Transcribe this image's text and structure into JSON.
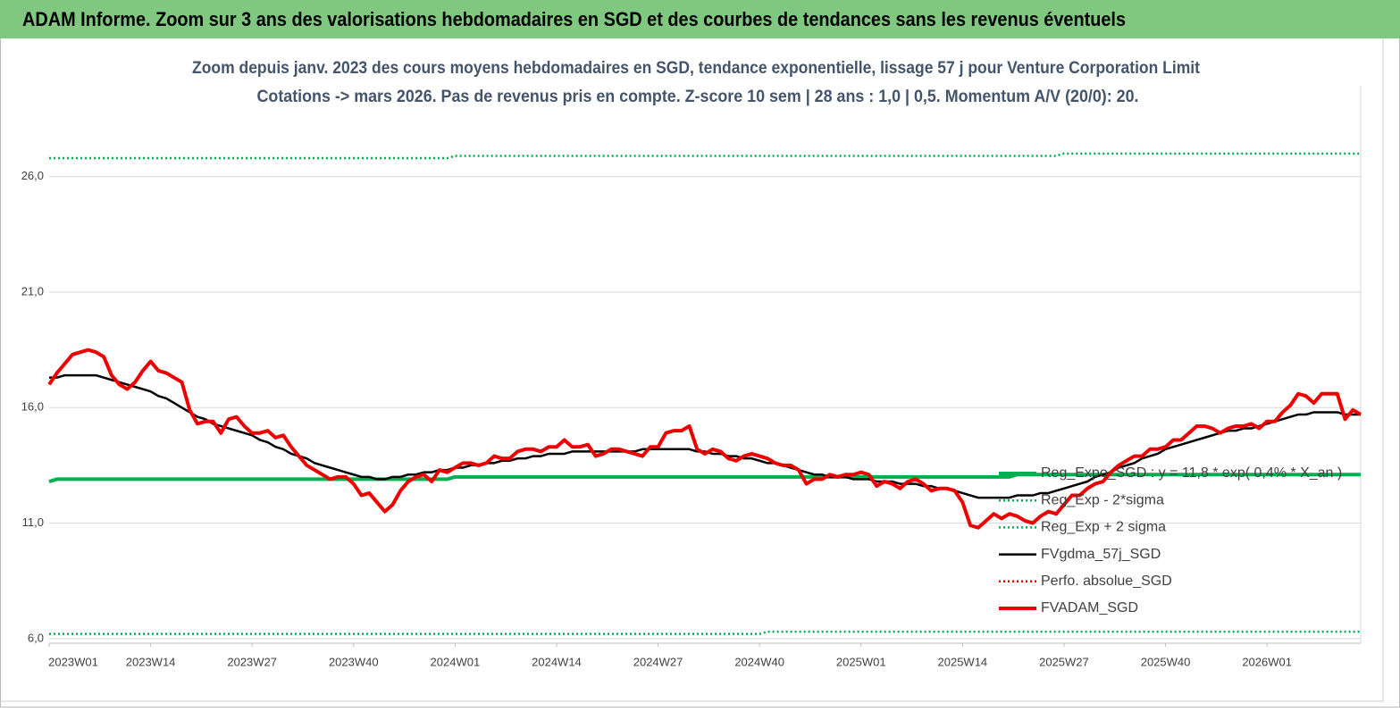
{
  "chart_data": {
    "type": "line",
    "title": "ADAM Informe. Zoom sur 3 ans des valorisations hebdomadaires en SGD et des courbes de tendances sans les revenus éventuels",
    "subtitle": [
      "Zoom depuis janv. 2023 des cours moyens hebdomadaires en SGD, tendance exponentielle, lissage 57 j pour Venture Corporation Limit",
      "Cotations -> mars 2026. Pas de revenus pris en compte. Z-score 10 sem  | 28 ans : 1,0 | 0,5. Momentum A/V (20/0): 20."
    ],
    "categories": [
      "2023W01",
      null,
      null,
      null,
      null,
      null,
      null,
      null,
      null,
      null,
      null,
      null,
      null,
      "2023W14",
      null,
      null,
      null,
      null,
      null,
      null,
      null,
      null,
      null,
      null,
      null,
      null,
      "2023W27",
      null,
      null,
      null,
      null,
      null,
      null,
      null,
      null,
      null,
      null,
      null,
      null,
      "2023W40",
      null,
      null,
      null,
      null,
      null,
      null,
      null,
      null,
      null,
      null,
      null,
      null,
      "2024W01",
      null,
      null,
      null,
      null,
      null,
      null,
      null,
      null,
      null,
      null,
      null,
      null,
      "2024W14",
      null,
      null,
      null,
      null,
      null,
      null,
      null,
      null,
      null,
      null,
      null,
      null,
      "2024W27",
      null,
      null,
      null,
      null,
      null,
      null,
      null,
      null,
      null,
      null,
      null,
      null,
      "2024W40",
      null,
      null,
      null,
      null,
      null,
      null,
      null,
      null,
      null,
      null,
      null,
      null,
      "2025W01",
      null,
      null,
      null,
      null,
      null,
      null,
      null,
      null,
      null,
      null,
      null,
      null,
      "2025W14",
      null,
      null,
      null,
      null,
      null,
      null,
      null,
      null,
      null,
      null,
      null,
      null,
      "2025W27",
      null,
      null,
      null,
      null,
      null,
      null,
      null,
      null,
      null,
      null,
      null,
      null,
      "2025W40",
      null,
      null,
      null,
      null,
      null,
      null,
      null,
      null,
      null,
      null,
      null,
      null,
      "2026W01",
      null,
      null,
      null,
      null,
      null,
      null,
      null,
      null,
      null,
      null,
      null,
      null
    ],
    "series": [
      {
        "name": "Reg_Expo_SGD : y = 11,8 * exp( 0,4% * X_an )",
        "color": "#00b050",
        "line_style": "thick",
        "values": [
          12.8,
          12.9,
          12.9,
          12.9,
          12.9,
          12.9,
          12.9,
          12.9,
          12.9,
          12.9,
          12.9,
          12.9,
          12.9,
          12.9,
          12.9,
          12.9,
          12.9,
          12.9,
          12.9,
          12.9,
          12.9,
          12.9,
          12.9,
          12.9,
          12.9,
          12.9,
          12.9,
          12.9,
          12.9,
          12.9,
          12.9,
          12.9,
          12.9,
          12.9,
          12.9,
          12.9,
          12.9,
          12.9,
          12.9,
          12.9,
          12.9,
          12.9,
          12.9,
          12.9,
          12.9,
          12.9,
          12.9,
          12.9,
          12.9,
          12.9,
          12.9,
          12.9,
          13.0,
          13.0,
          13.0,
          13.0,
          13.0,
          13.0,
          13.0,
          13.0,
          13.0,
          13.0,
          13.0,
          13.0,
          13.0,
          13.0,
          13.0,
          13.0,
          13.0,
          13.0,
          13.0,
          13.0,
          13.0,
          13.0,
          13.0,
          13.0,
          13.0,
          13.0,
          13.0,
          13.0,
          13.0,
          13.0,
          13.0,
          13.0,
          13.0,
          13.0,
          13.0,
          13.0,
          13.0,
          13.0,
          13.0,
          13.0,
          13.0,
          13.0,
          13.0,
          13.0,
          13.0,
          13.0,
          13.0,
          13.0,
          13.0,
          13.0,
          13.0,
          13.0,
          13.0,
          13.0,
          13.0,
          13.0,
          13.0,
          13.0,
          13.0,
          13.0,
          13.0,
          13.0,
          13.0,
          13.0,
          13.0,
          13.0,
          13.0,
          13.0,
          13.0,
          13.0,
          13.0,
          13.0,
          13.1,
          13.1,
          13.1,
          13.1,
          13.1,
          13.1,
          13.1,
          13.1,
          13.1,
          13.1,
          13.1,
          13.1,
          13.1,
          13.1,
          13.1,
          13.1,
          13.1,
          13.1,
          13.1,
          13.1,
          13.1,
          13.1,
          13.1,
          13.1,
          13.1,
          13.1,
          13.1,
          13.1,
          13.1,
          13.1,
          13.1,
          13.1,
          13.1,
          13.1,
          13.1,
          13.1,
          13.1,
          13.1,
          13.1,
          13.1,
          13.1,
          13.1,
          13.1,
          13.1,
          13.1
        ]
      },
      {
        "name": "Reg_Exp - 2*sigma",
        "color": "#00b050",
        "line_style": "dotted",
        "values": [
          6.2,
          6.2,
          6.2,
          6.2,
          6.2,
          6.2,
          6.2,
          6.2,
          6.2,
          6.2,
          6.2,
          6.2,
          6.2,
          6.2,
          6.2,
          6.2,
          6.2,
          6.2,
          6.2,
          6.2,
          6.2,
          6.2,
          6.2,
          6.2,
          6.2,
          6.2,
          6.2,
          6.2,
          6.2,
          6.2,
          6.2,
          6.2,
          6.2,
          6.2,
          6.2,
          6.2,
          6.2,
          6.2,
          6.2,
          6.2,
          6.2,
          6.2,
          6.2,
          6.2,
          6.2,
          6.2,
          6.2,
          6.2,
          6.2,
          6.2,
          6.2,
          6.2,
          6.2,
          6.2,
          6.2,
          6.2,
          6.2,
          6.2,
          6.2,
          6.2,
          6.2,
          6.2,
          6.2,
          6.2,
          6.2,
          6.2,
          6.2,
          6.2,
          6.2,
          6.2,
          6.2,
          6.2,
          6.2,
          6.2,
          6.2,
          6.2,
          6.2,
          6.2,
          6.2,
          6.2,
          6.2,
          6.2,
          6.2,
          6.2,
          6.2,
          6.2,
          6.2,
          6.2,
          6.2,
          6.2,
          6.2,
          6.2,
          6.3,
          6.3,
          6.3,
          6.3,
          6.3,
          6.3,
          6.3,
          6.3,
          6.3,
          6.3,
          6.3,
          6.3,
          6.3,
          6.3,
          6.3,
          6.3,
          6.3,
          6.3,
          6.3,
          6.3,
          6.3,
          6.3,
          6.3,
          6.3,
          6.3,
          6.3,
          6.3,
          6.3,
          6.3,
          6.3,
          6.3,
          6.3,
          6.3,
          6.3,
          6.3,
          6.3,
          6.3,
          6.3,
          6.3,
          6.3,
          6.3,
          6.3,
          6.3,
          6.3,
          6.3,
          6.3,
          6.3,
          6.3,
          6.3,
          6.3,
          6.3,
          6.3,
          6.3,
          6.3,
          6.3,
          6.3,
          6.3,
          6.3,
          6.3,
          6.3,
          6.3,
          6.3,
          6.3,
          6.3,
          6.3,
          6.3,
          6.3,
          6.3,
          6.3,
          6.3,
          6.3,
          6.3,
          6.3,
          6.3,
          6.3,
          6.3,
          6.3
        ]
      },
      {
        "name": "Reg_Exp + 2 sigma",
        "color": "#00b050",
        "line_style": "dotted",
        "values": [
          26.8,
          26.8,
          26.8,
          26.8,
          26.8,
          26.8,
          26.8,
          26.8,
          26.8,
          26.8,
          26.8,
          26.8,
          26.8,
          26.8,
          26.8,
          26.8,
          26.8,
          26.8,
          26.8,
          26.8,
          26.8,
          26.8,
          26.8,
          26.8,
          26.8,
          26.8,
          26.8,
          26.8,
          26.8,
          26.8,
          26.8,
          26.8,
          26.8,
          26.8,
          26.8,
          26.8,
          26.8,
          26.8,
          26.8,
          26.8,
          26.8,
          26.8,
          26.8,
          26.8,
          26.8,
          26.8,
          26.8,
          26.8,
          26.8,
          26.8,
          26.8,
          26.8,
          26.9,
          26.9,
          26.9,
          26.9,
          26.9,
          26.9,
          26.9,
          26.9,
          26.9,
          26.9,
          26.9,
          26.9,
          26.9,
          26.9,
          26.9,
          26.9,
          26.9,
          26.9,
          26.9,
          26.9,
          26.9,
          26.9,
          26.9,
          26.9,
          26.9,
          26.9,
          26.9,
          26.9,
          26.9,
          26.9,
          26.9,
          26.9,
          26.9,
          26.9,
          26.9,
          26.9,
          26.9,
          26.9,
          26.9,
          26.9,
          26.9,
          26.9,
          26.9,
          26.9,
          26.9,
          26.9,
          26.9,
          26.9,
          26.9,
          26.9,
          26.9,
          26.9,
          26.9,
          26.9,
          26.9,
          26.9,
          26.9,
          26.9,
          26.9,
          26.9,
          26.9,
          26.9,
          26.9,
          26.9,
          26.9,
          26.9,
          26.9,
          26.9,
          26.9,
          26.9,
          26.9,
          26.9,
          26.9,
          26.9,
          26.9,
          26.9,
          26.9,
          26.9,
          27.0,
          27.0,
          27.0,
          27.0,
          27.0,
          27.0,
          27.0,
          27.0,
          27.0,
          27.0,
          27.0,
          27.0,
          27.0,
          27.0,
          27.0,
          27.0,
          27.0,
          27.0,
          27.0,
          27.0,
          27.0,
          27.0,
          27.0,
          27.0,
          27.0,
          27.0,
          27.0,
          27.0,
          27.0,
          27.0,
          27.0,
          27.0,
          27.0,
          27.0,
          27.0,
          27.0,
          27.0,
          27.0,
          27.0
        ]
      },
      {
        "name": "FVgdma_57j_SGD",
        "color": "#000000",
        "line_style": "solid",
        "values": [
          17.3,
          17.3,
          17.4,
          17.4,
          17.4,
          17.4,
          17.4,
          17.3,
          17.2,
          17.1,
          17.0,
          16.9,
          16.8,
          16.7,
          16.5,
          16.4,
          16.2,
          16.0,
          15.8,
          15.6,
          15.5,
          15.3,
          15.2,
          15.1,
          15.0,
          14.9,
          14.8,
          14.6,
          14.5,
          14.3,
          14.2,
          14.0,
          13.9,
          13.8,
          13.6,
          13.5,
          13.4,
          13.3,
          13.2,
          13.1,
          13.0,
          13.0,
          12.9,
          12.9,
          13.0,
          13.0,
          13.1,
          13.1,
          13.2,
          13.2,
          13.3,
          13.3,
          13.4,
          13.4,
          13.5,
          13.5,
          13.6,
          13.6,
          13.7,
          13.7,
          13.8,
          13.8,
          13.9,
          13.9,
          14.0,
          14.0,
          14.0,
          14.1,
          14.1,
          14.1,
          14.1,
          14.1,
          14.1,
          14.1,
          14.1,
          14.1,
          14.2,
          14.2,
          14.2,
          14.2,
          14.2,
          14.2,
          14.2,
          14.1,
          14.1,
          14.0,
          14.0,
          13.9,
          13.9,
          13.8,
          13.8,
          13.7,
          13.6,
          13.6,
          13.5,
          13.4,
          13.3,
          13.2,
          13.1,
          13.1,
          13.0,
          13.0,
          13.0,
          12.9,
          12.9,
          12.9,
          12.8,
          12.8,
          12.8,
          12.7,
          12.7,
          12.7,
          12.6,
          12.6,
          12.5,
          12.5,
          12.4,
          12.3,
          12.2,
          12.1,
          12.1,
          12.1,
          12.1,
          12.1,
          12.2,
          12.2,
          12.2,
          12.3,
          12.3,
          12.4,
          12.5,
          12.6,
          12.7,
          12.8,
          13.0,
          13.1,
          13.2,
          13.4,
          13.5,
          13.6,
          13.8,
          13.9,
          14.0,
          14.2,
          14.3,
          14.4,
          14.5,
          14.6,
          14.7,
          14.8,
          14.9,
          15.0,
          15.0,
          15.1,
          15.1,
          15.2,
          15.3,
          15.4,
          15.5,
          15.6,
          15.7,
          15.7,
          15.8,
          15.8,
          15.8,
          15.8,
          15.7,
          15.7,
          15.7
        ]
      },
      {
        "name": "Perfo. absolue_SGD",
        "color": "#e00000",
        "line_style": "dotted"
      },
      {
        "name": "FVADAM_SGD",
        "color": "#ee0000",
        "line_style": "thick",
        "values": [
          17.0,
          17.5,
          17.9,
          18.3,
          18.4,
          18.5,
          18.4,
          18.2,
          17.4,
          17.0,
          16.8,
          17.1,
          17.6,
          18.0,
          17.6,
          17.5,
          17.3,
          17.1,
          15.9,
          15.3,
          15.4,
          15.4,
          14.9,
          15.5,
          15.6,
          15.2,
          14.9,
          14.9,
          15.0,
          14.7,
          14.8,
          14.3,
          13.9,
          13.5,
          13.3,
          13.1,
          12.9,
          13.0,
          13.0,
          12.7,
          12.2,
          12.3,
          11.9,
          11.5,
          11.8,
          12.4,
          12.8,
          13.0,
          13.1,
          12.8,
          13.3,
          13.2,
          13.4,
          13.6,
          13.6,
          13.5,
          13.6,
          13.9,
          13.8,
          13.8,
          14.1,
          14.2,
          14.2,
          14.1,
          14.3,
          14.3,
          14.6,
          14.3,
          14.3,
          14.4,
          13.9,
          14.0,
          14.2,
          14.2,
          14.1,
          14.0,
          13.9,
          14.3,
          14.3,
          14.9,
          15.0,
          15.0,
          15.2,
          14.2,
          14.0,
          14.2,
          14.1,
          13.8,
          13.7,
          13.9,
          14.0,
          13.9,
          13.8,
          13.6,
          13.5,
          13.5,
          13.3,
          12.7,
          12.9,
          12.9,
          13.1,
          13.0,
          13.1,
          13.1,
          13.2,
          13.1,
          12.6,
          12.8,
          12.7,
          12.5,
          12.8,
          12.9,
          12.7,
          12.4,
          12.5,
          12.5,
          12.4,
          11.9,
          10.9,
          10.8,
          11.1,
          11.4,
          11.2,
          11.4,
          11.3,
          11.1,
          11.0,
          11.3,
          11.5,
          11.4,
          11.8,
          12.2,
          12.2,
          12.5,
          12.7,
          12.8,
          13.2,
          13.5,
          13.7,
          13.9,
          13.9,
          14.2,
          14.2,
          14.3,
          14.6,
          14.6,
          14.9,
          15.2,
          15.2,
          15.1,
          14.9,
          15.1,
          15.2,
          15.2,
          15.3,
          15.1,
          15.4,
          15.4,
          15.8,
          16.1,
          16.6,
          16.5,
          16.2,
          16.6,
          16.6,
          16.6,
          15.5,
          15.9,
          15.7
        ]
      }
    ],
    "ylim": [
      5.8,
      28
    ],
    "yticks": [
      {
        "value": 6,
        "label": "6,0"
      },
      {
        "value": 11,
        "label": "11,0"
      },
      {
        "value": 16,
        "label": "16,0"
      },
      {
        "value": 21,
        "label": "21,0"
      },
      {
        "value": 26,
        "label": "26,0"
      }
    ],
    "grid": true,
    "legend": "lower right"
  }
}
